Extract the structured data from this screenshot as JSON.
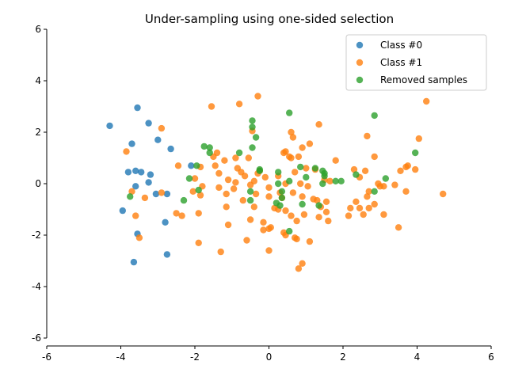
{
  "chart_data": {
    "type": "scatter",
    "title": "Under-sampling using one-sided selection",
    "xlabel": "",
    "ylabel": "",
    "xlim": [
      -6,
      6
    ],
    "ylim": [
      -6,
      6
    ],
    "xticks": [
      -6,
      -4,
      -2,
      0,
      2,
      4,
      6
    ],
    "yticks": [
      -6,
      -4,
      -2,
      0,
      2,
      4,
      6
    ],
    "grid": false,
    "legend": "top-right",
    "series": [
      {
        "name": "Class #0",
        "color": "#1f77b4",
        "points": [
          [
            -4.3,
            2.25
          ],
          [
            -3.55,
            2.95
          ],
          [
            -3.25,
            2.35
          ],
          [
            -3.7,
            1.55
          ],
          [
            -3.0,
            1.7
          ],
          [
            -2.65,
            1.35
          ],
          [
            -3.8,
            0.45
          ],
          [
            -3.6,
            0.5
          ],
          [
            -3.45,
            0.45
          ],
          [
            -3.2,
            0.35
          ],
          [
            -3.25,
            0.05
          ],
          [
            -3.6,
            -0.1
          ],
          [
            -3.05,
            -0.4
          ],
          [
            -2.75,
            -0.4
          ],
          [
            -2.1,
            0.7
          ],
          [
            -3.95,
            -1.05
          ],
          [
            -2.8,
            -1.5
          ],
          [
            -3.55,
            -1.95
          ],
          [
            -3.65,
            -3.05
          ],
          [
            -2.75,
            -2.75
          ]
        ]
      },
      {
        "name": "Class #1",
        "color": "#ff7f0e",
        "points": [
          [
            -3.85,
            1.25
          ],
          [
            -2.9,
            2.15
          ],
          [
            -1.55,
            3.0
          ],
          [
            -0.8,
            3.1
          ],
          [
            -0.3,
            3.4
          ],
          [
            4.25,
            3.2
          ],
          [
            1.35,
            2.3
          ],
          [
            0.6,
            2.0
          ],
          [
            0.65,
            1.8
          ],
          [
            -0.45,
            2.05
          ],
          [
            2.65,
            1.85
          ],
          [
            4.05,
            1.75
          ],
          [
            1.1,
            1.55
          ],
          [
            0.9,
            1.4
          ],
          [
            0.45,
            1.25
          ],
          [
            0.4,
            1.2
          ],
          [
            -1.4,
            1.2
          ],
          [
            -1.5,
            1.05
          ],
          [
            0.55,
            1.05
          ],
          [
            0.6,
            1.0
          ],
          [
            0.8,
            1.05
          ],
          [
            2.85,
            1.05
          ],
          [
            -0.9,
            1.0
          ],
          [
            -0.55,
            1.0
          ],
          [
            1.8,
            0.9
          ],
          [
            -1.2,
            0.9
          ],
          [
            -1.45,
            0.7
          ],
          [
            -0.85,
            0.6
          ],
          [
            -0.25,
            0.5
          ],
          [
            -0.75,
            0.45
          ],
          [
            2.3,
            0.55
          ],
          [
            2.6,
            0.5
          ],
          [
            3.55,
            0.5
          ],
          [
            3.7,
            0.65
          ],
          [
            3.75,
            0.7
          ],
          [
            3.95,
            0.55
          ],
          [
            -2.45,
            0.7
          ],
          [
            -1.85,
            0.65
          ],
          [
            -1.35,
            0.4
          ],
          [
            -1.1,
            0.15
          ],
          [
            -0.9,
            0.05
          ],
          [
            -0.65,
            0.3
          ],
          [
            -0.3,
            0.4
          ],
          [
            -0.1,
            0.25
          ],
          [
            0.25,
            0.3
          ],
          [
            0.7,
            0.45
          ],
          [
            1.0,
            0.6
          ],
          [
            1.25,
            0.55
          ],
          [
            2.45,
            0.25
          ],
          [
            2.95,
            0.0
          ],
          [
            3.1,
            -0.1
          ],
          [
            3.4,
            -0.05
          ],
          [
            -2.0,
            0.2
          ],
          [
            -1.8,
            -0.1
          ],
          [
            -1.35,
            -0.15
          ],
          [
            -1.15,
            -0.4
          ],
          [
            -0.95,
            -0.2
          ],
          [
            -0.5,
            -0.05
          ],
          [
            -0.4,
            0.1
          ],
          [
            0.0,
            -0.15
          ],
          [
            0.3,
            -0.35
          ],
          [
            0.45,
            0.0
          ],
          [
            0.65,
            -0.35
          ],
          [
            0.85,
            0.0
          ],
          [
            1.05,
            -0.1
          ],
          [
            1.5,
            0.15
          ],
          [
            1.65,
            0.1
          ],
          [
            2.7,
            -0.3
          ],
          [
            3.0,
            -0.1
          ],
          [
            3.7,
            -0.3
          ],
          [
            -3.7,
            -0.3
          ],
          [
            -3.35,
            -0.55
          ],
          [
            -2.9,
            -0.35
          ],
          [
            -2.05,
            -0.3
          ],
          [
            -1.85,
            -0.45
          ],
          [
            -0.7,
            -0.65
          ],
          [
            -0.35,
            -0.4
          ],
          [
            0.0,
            -0.5
          ],
          [
            0.35,
            -0.55
          ],
          [
            0.9,
            -0.5
          ],
          [
            1.2,
            -0.6
          ],
          [
            1.3,
            -0.65
          ],
          [
            1.55,
            -0.7
          ],
          [
            2.35,
            -0.7
          ],
          [
            2.65,
            -0.5
          ],
          [
            2.85,
            -0.8
          ],
          [
            -1.15,
            -0.9
          ],
          [
            -0.4,
            -0.9
          ],
          [
            0.15,
            -0.95
          ],
          [
            0.25,
            -1.0
          ],
          [
            0.45,
            -1.05
          ],
          [
            0.6,
            -1.25
          ],
          [
            1.4,
            -0.9
          ],
          [
            1.55,
            -1.1
          ],
          [
            2.2,
            -0.95
          ],
          [
            2.45,
            -0.95
          ],
          [
            2.7,
            -0.95
          ],
          [
            -2.5,
            -1.15
          ],
          [
            -2.35,
            -1.25
          ],
          [
            -1.9,
            -1.15
          ],
          [
            -3.6,
            -1.25
          ],
          [
            -0.5,
            -1.4
          ],
          [
            -0.15,
            -1.5
          ],
          [
            0.75,
            -1.45
          ],
          [
            0.95,
            -1.2
          ],
          [
            1.35,
            -1.3
          ],
          [
            1.6,
            -1.45
          ],
          [
            2.15,
            -1.25
          ],
          [
            2.55,
            -1.2
          ],
          [
            3.1,
            -1.2
          ],
          [
            -1.1,
            -1.6
          ],
          [
            -0.15,
            -1.8
          ],
          [
            0.0,
            -1.75
          ],
          [
            0.05,
            -1.7
          ],
          [
            0.4,
            -1.9
          ],
          [
            0.45,
            -2.0
          ],
          [
            0.7,
            -2.1
          ],
          [
            0.75,
            -2.15
          ],
          [
            1.1,
            -2.25
          ],
          [
            3.5,
            -1.7
          ],
          [
            4.7,
            -0.4
          ],
          [
            -3.5,
            -2.1
          ],
          [
            -1.9,
            -2.3
          ],
          [
            -0.6,
            -2.2
          ],
          [
            0.0,
            -2.6
          ],
          [
            -1.3,
            -2.65
          ],
          [
            0.9,
            -3.1
          ],
          [
            0.8,
            -3.3
          ]
        ]
      },
      {
        "name": "Removed samples",
        "color": "#2ca02c",
        "points": [
          [
            -0.45,
            2.45
          ],
          [
            -0.45,
            2.2
          ],
          [
            -0.35,
            1.8
          ],
          [
            0.55,
            2.75
          ],
          [
            2.85,
            2.65
          ],
          [
            -1.75,
            1.45
          ],
          [
            -1.6,
            1.4
          ],
          [
            -1.6,
            1.2
          ],
          [
            -0.8,
            1.2
          ],
          [
            -0.45,
            1.4
          ],
          [
            3.95,
            1.2
          ],
          [
            -1.95,
            0.7
          ],
          [
            -2.15,
            0.2
          ],
          [
            -0.25,
            0.5
          ],
          [
            -0.25,
            0.55
          ],
          [
            0.25,
            0.45
          ],
          [
            0.55,
            0.1
          ],
          [
            0.85,
            0.65
          ],
          [
            1.0,
            0.25
          ],
          [
            1.25,
            0.6
          ],
          [
            1.45,
            0.5
          ],
          [
            1.5,
            0.4
          ],
          [
            1.5,
            0.3
          ],
          [
            1.8,
            0.1
          ],
          [
            1.95,
            0.1
          ],
          [
            2.35,
            0.35
          ],
          [
            3.15,
            0.2
          ],
          [
            1.45,
            0.0
          ],
          [
            -1.9,
            -0.25
          ],
          [
            -0.5,
            -0.3
          ],
          [
            0.25,
            0.0
          ],
          [
            0.35,
            -0.3
          ],
          [
            0.35,
            -0.55
          ],
          [
            0.3,
            -0.85
          ],
          [
            -2.3,
            -0.65
          ],
          [
            -3.75,
            -0.5
          ],
          [
            -0.5,
            -0.65
          ],
          [
            0.2,
            -0.75
          ],
          [
            0.9,
            -0.8
          ],
          [
            1.35,
            -0.85
          ],
          [
            2.85,
            -0.3
          ],
          [
            0.55,
            -1.85
          ]
        ]
      }
    ]
  }
}
